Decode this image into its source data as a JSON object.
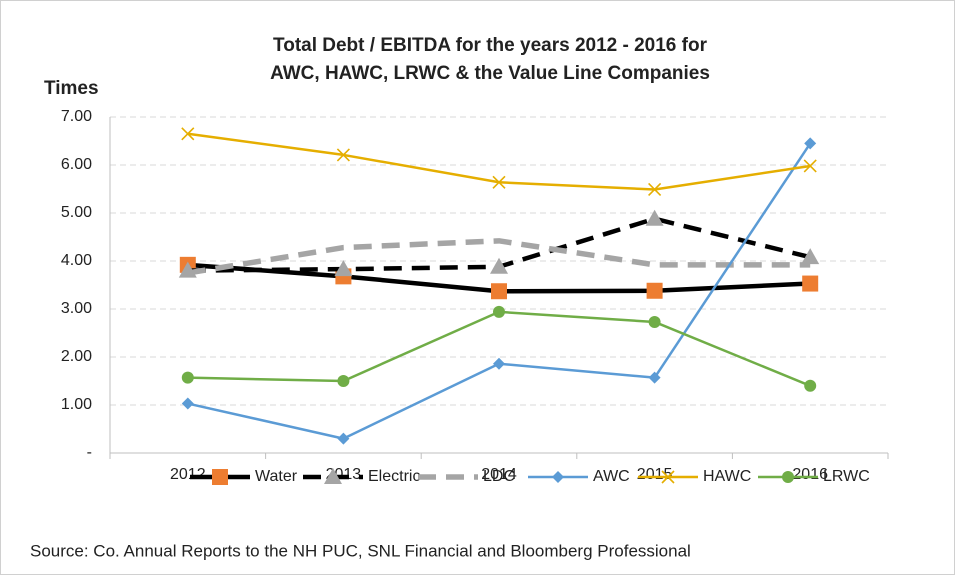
{
  "chart_data": {
    "type": "line",
    "title": [
      "Total Debt / EBITDA for the years 2012 - 2016 for",
      "AWC, HAWC, LRWC & the Value Line Companies"
    ],
    "y_label": "Times",
    "source": "Source: Co. Annual Reports to the NH PUC, SNL Financial and Bloomberg Professional",
    "categories": [
      "2012",
      "2013",
      "2014",
      "2015",
      "2016"
    ],
    "ylim": [
      0,
      7
    ],
    "yticks": [
      {
        "value": 0,
        "label": "-"
      },
      {
        "value": 1,
        "label": "1.00"
      },
      {
        "value": 2,
        "label": "2.00"
      },
      {
        "value": 3,
        "label": "3.00"
      },
      {
        "value": 4,
        "label": "4.00"
      },
      {
        "value": 5,
        "label": "5.00"
      },
      {
        "value": 6,
        "label": "6.00"
      },
      {
        "value": 7,
        "label": "7.00"
      }
    ],
    "grid": true,
    "legend": "bottom",
    "series": [
      {
        "name": "Water",
        "color": "#000000",
        "marker": "square",
        "marker_color": "#ED7D31",
        "style": "solid",
        "weight": "heavy",
        "values": [
          3.92,
          3.68,
          3.37,
          3.38,
          3.53
        ]
      },
      {
        "name": "Electric",
        "color": "#000000",
        "marker": "triangle",
        "marker_color": "#A5A5A5",
        "style": "dashed",
        "weight": "heavy",
        "values": [
          3.8,
          3.83,
          3.88,
          4.88,
          4.08
        ]
      },
      {
        "name": "LDC",
        "color": "#A5A5A5",
        "marker": "none",
        "marker_color": "#A5A5A5",
        "style": "dashed",
        "weight": "heavy",
        "values": [
          3.75,
          4.28,
          4.42,
          3.92,
          3.92
        ]
      },
      {
        "name": "AWC",
        "color": "#5B9BD5",
        "marker": "diamond",
        "marker_color": "#5B9BD5",
        "style": "solid",
        "weight": "normal",
        "values": [
          1.03,
          0.3,
          1.86,
          1.57,
          6.45
        ]
      },
      {
        "name": "HAWC",
        "color": "#E5AE00",
        "marker": "x",
        "marker_color": "#E5AE00",
        "style": "solid",
        "weight": "normal",
        "values": [
          6.65,
          6.21,
          5.64,
          5.49,
          5.98
        ]
      },
      {
        "name": "LRWC",
        "color": "#70AD47",
        "marker": "circle",
        "marker_color": "#70AD47",
        "style": "solid",
        "weight": "normal",
        "values": [
          1.57,
          1.5,
          2.94,
          2.73,
          1.4
        ]
      }
    ]
  }
}
